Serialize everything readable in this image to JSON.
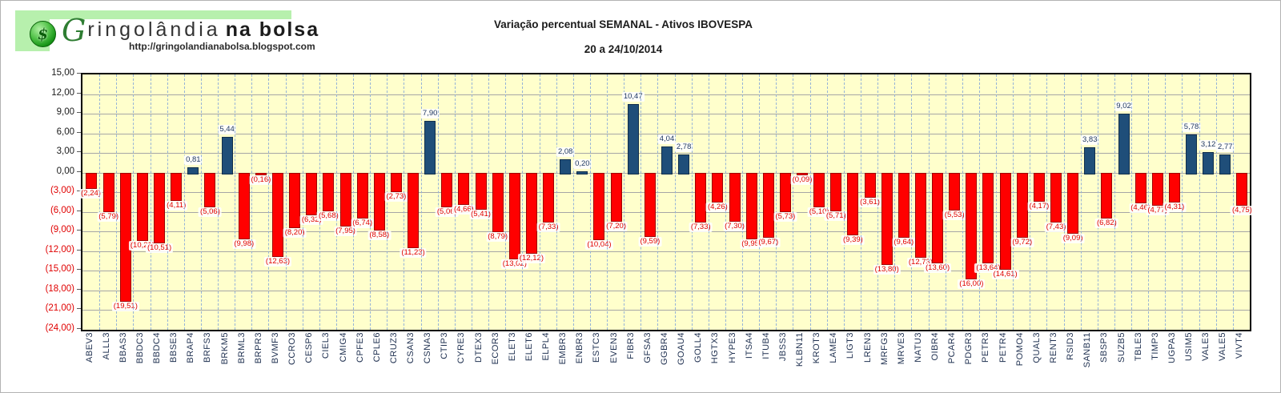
{
  "logo": {
    "brand_initial": "G",
    "brand_mid": "ringolândia",
    "brand_suffix": "na bolsa",
    "url": "http://gringolandianabolsa.blogspot.com",
    "banner_color": "#b7f0ad",
    "circle_symbol": "$"
  },
  "header": {
    "title": "Variação percentual SEMANAL  - Ativos IBOVESPA",
    "subtitle": "20 a 24/10/2014"
  },
  "chart_data": {
    "type": "bar",
    "title": "Variação percentual SEMANAL - Ativos IBOVESPA",
    "subtitle": "20 a 24/10/2014",
    "ylim": [
      -24,
      15
    ],
    "y_tick_step": 3,
    "y_tick_labels": [
      "15,00",
      "12,00",
      "9,00",
      "6,00",
      "3,00",
      "0,00",
      "(3,00)",
      "(6,00)",
      "(9,00)",
      "(12,00)",
      "(15,00)",
      "(18,00)",
      "(21,00)",
      "(24,00)"
    ],
    "grid": true,
    "legend": "none",
    "categories": [
      "ABEV3",
      "ALLL3",
      "BBAS3",
      "BBDC3",
      "BBDC4",
      "BBSE3",
      "BRAP4",
      "BRFS3",
      "BRKM5",
      "BRML3",
      "BRPR3",
      "BVMF3",
      "CCRO3",
      "CESP6",
      "CIEL3",
      "CMIG4",
      "CPFE3",
      "CPLE6",
      "CRUZ3",
      "CSAN3",
      "CSNA3",
      "CTIP3",
      "CYRE3",
      "DTEX3",
      "ECOR3",
      "ELET3",
      "ELET6",
      "ELPL4",
      "EMBR3",
      "ENBR3",
      "ESTC3",
      "EVEN3",
      "FIBR3",
      "GFSA3",
      "GGBR4",
      "GOAU4",
      "GOLL4",
      "HGTX3",
      "HYPE3",
      "ITSA4",
      "ITUB4",
      "JBSS3",
      "KLBN11",
      "KROT3",
      "LAME4",
      "LIGT3",
      "LREN3",
      "MRFG3",
      "MRVE3",
      "NATU3",
      "OIBR4",
      "PCAR4",
      "PDGR3",
      "PETR3",
      "PETR4",
      "POMO4",
      "QUAL3",
      "RENT3",
      "RSID3",
      "SANB11",
      "SBSP3",
      "SUZB5",
      "TBLE3",
      "TIMP3",
      "UGPA3",
      "USIM5",
      "VALE3",
      "VALE5",
      "VIVT4"
    ],
    "values": [
      -2.24,
      -5.79,
      -19.51,
      -10.21,
      -10.51,
      -4.11,
      0.81,
      -5.06,
      5.44,
      -9.98,
      -0.16,
      -12.63,
      -8.2,
      -6.32,
      -5.68,
      -7.95,
      -6.74,
      -8.58,
      -2.73,
      -11.23,
      7.9,
      -5.06,
      -4.66,
      -5.41,
      -8.79,
      -13.02,
      -12.12,
      -7.33,
      2.08,
      0.2,
      -10.04,
      -7.2,
      10.47,
      -9.59,
      4.04,
      2.78,
      -7.33,
      -4.26,
      -7.3,
      -9.95,
      -9.67,
      -5.73,
      -0.09,
      -5.1,
      -5.71,
      -9.39,
      -3.61,
      -13.8,
      -9.64,
      -12.73,
      -13.6,
      -5.53,
      -16.0,
      -13.64,
      -14.61,
      -9.72,
      -4.17,
      -7.43,
      -9.09,
      3.83,
      -6.82,
      9.02,
      -4.46,
      -4.77,
      -4.31,
      5.78,
      3.12,
      2.77,
      -4.75
    ],
    "labels": [
      "(2,24)",
      "(5,79)",
      "(19,51)",
      "(10,21)",
      "(10,51)",
      "(4,11)",
      "0,81",
      "(5,06)",
      "5,44",
      "(9,98)",
      "(0,16)",
      "(12,63)",
      "(8,20)",
      "(6,32)",
      "(5,68)",
      "(7,95)",
      "(6,74)",
      "(8,58)",
      "(2,73)",
      "(11,23)",
      "7,90",
      "(5,06)",
      "(4,66)",
      "(5,41)",
      "(8,79)",
      "(13,02)",
      "(12,12)",
      "(7,33)",
      "2,08",
      "0,20",
      "(10,04)",
      "(7,20)",
      "10,47",
      "(9,59)",
      "4,04",
      "2,78",
      "(7,33)",
      "(4,26)",
      "(7,30)",
      "(9,95)",
      "(9,67)",
      "(5,73)",
      "(0,09)",
      "(5,10)",
      "(5,71)",
      "(9,39)",
      "(3,61)",
      "(13,80)",
      "(9,64)",
      "(12,73)",
      "(13,60)",
      "(5,53)",
      "(16,00)",
      "(13,64)",
      "(14,61)",
      "(9,72)",
      "(4,17)",
      "(7,43)",
      "(9,09)",
      "3,83",
      "(6,82)",
      "9,02",
      "(4,46)",
      "(4,77)",
      "(4,31)",
      "5,78",
      "3,12",
      "2,77",
      "(4,75)"
    ],
    "colors": {
      "plot_background": "#FFFFCC",
      "plot_border": "#000000",
      "grid_horizontal": "#A6A6A6",
      "grid_vertical_dashed": "#95B3D7",
      "bar_positive": "#1F4E79",
      "bar_positive_border": "#122F4B",
      "bar_negative": "#FF0000",
      "bar_negative_border": "#A00000",
      "label_positive": "#1F3864",
      "label_negative": "#E00000",
      "axis_text": "#1a1a1a",
      "axis_text_negative": "#E00000"
    }
  }
}
